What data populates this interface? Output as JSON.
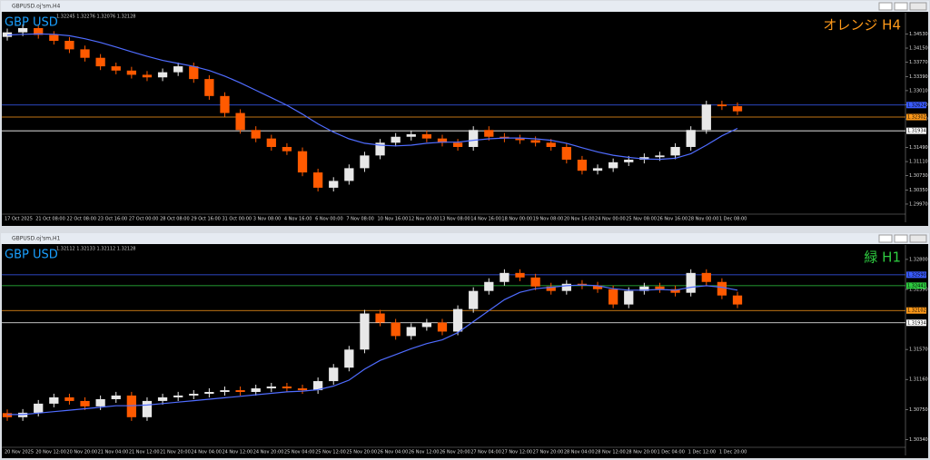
{
  "chart_data": [
    {
      "type": "candlestick",
      "title": "GBPUSD.oj'sm,H4",
      "info": "1.32245 1.32276 1.32076 1.32128",
      "symbol": "GBP USD",
      "label": "オレンジ H4",
      "label_color": "#ff9a1a",
      "categories": [
        "17 Oct 2025",
        null,
        "21 Oct 08:00",
        null,
        "22 Oct 08:00",
        null,
        "23 Oct 16:00",
        null,
        "27 Oct 00:00",
        null,
        "28 Oct 08:00",
        null,
        "29 Oct 16:00",
        null,
        "31 Oct 00:00",
        null,
        "3 Nov 08:00",
        null,
        "4 Nov 16:00",
        null,
        "6 Nov 00:00",
        null,
        "7 Nov 08:00",
        null,
        "10 Nov 16:00",
        null,
        "12 Nov 00:00",
        null,
        "13 Nov 08:00",
        null,
        "14 Nov 16:00",
        null,
        "18 Nov 00:00",
        null,
        "19 Nov 08:00",
        null,
        "20 Nov 16:00",
        null,
        "24 Nov 00:00",
        null,
        "25 Nov 08:00",
        null,
        "26 Nov 16:00",
        null,
        "28 Nov 00:00",
        null,
        "1 Dec 08:00",
        null
      ],
      "open": [
        1.3445,
        1.34572,
        1.34686,
        1.34504,
        1.34345,
        1.34117,
        1.3389,
        1.33662,
        1.33548,
        1.33435,
        1.33366,
        1.33503,
        1.33662,
        1.33321,
        1.32866,
        1.32411,
        1.31956,
        1.31728,
        1.31501,
        1.31387,
        1.30818,
        1.30409,
        1.30591,
        1.30932,
        1.31273,
        1.31615,
        1.31774,
        1.31842,
        1.31728,
        1.31615,
        1.31501,
        1.31956,
        1.31774,
        1.31728,
        1.31683,
        1.31615,
        1.31501,
        1.3116,
        1.30864,
        1.30932,
        1.31091,
        1.3116,
        1.31228,
        1.31273,
        1.31501,
        1.31956,
        1.32639,
        1.32593
      ],
      "high": [
        1.34672,
        1.34786,
        1.34786,
        1.34604,
        1.34445,
        1.34217,
        1.3399,
        1.33762,
        1.33648,
        1.33535,
        1.33603,
        1.33762,
        1.33762,
        1.33421,
        1.32966,
        1.32511,
        1.32056,
        1.31828,
        1.31601,
        1.31487,
        1.30918,
        1.30691,
        1.31032,
        1.31373,
        1.31715,
        1.31874,
        1.31942,
        1.31942,
        1.31828,
        1.31715,
        1.32056,
        1.32056,
        1.31874,
        1.31828,
        1.31783,
        1.31715,
        1.31601,
        1.3126,
        1.31032,
        1.31191,
        1.3126,
        1.31328,
        1.31373,
        1.31601,
        1.32056,
        1.32739,
        1.32739,
        1.32693
      ],
      "low": [
        1.3435,
        1.34472,
        1.34404,
        1.34245,
        1.34017,
        1.3379,
        1.33562,
        1.33448,
        1.33335,
        1.33266,
        1.33266,
        1.33403,
        1.33221,
        1.32766,
        1.32311,
        1.31856,
        1.31628,
        1.31401,
        1.31287,
        1.30718,
        1.30309,
        1.30309,
        1.30491,
        1.30832,
        1.31173,
        1.31515,
        1.31674,
        1.31628,
        1.31515,
        1.31401,
        1.31401,
        1.31674,
        1.31628,
        1.31583,
        1.31515,
        1.31401,
        1.3106,
        1.30764,
        1.30764,
        1.30832,
        1.30991,
        1.3106,
        1.31128,
        1.31173,
        1.31401,
        1.31856,
        1.32493,
        1.32356
      ],
      "close": [
        1.34572,
        1.34686,
        1.34504,
        1.34345,
        1.34117,
        1.3389,
        1.33662,
        1.33548,
        1.33435,
        1.33366,
        1.33503,
        1.33662,
        1.33321,
        1.32866,
        1.32411,
        1.31956,
        1.31728,
        1.31501,
        1.31387,
        1.30818,
        1.30409,
        1.30591,
        1.30932,
        1.31273,
        1.31615,
        1.31774,
        1.31842,
        1.31728,
        1.31615,
        1.31501,
        1.31956,
        1.31774,
        1.31728,
        1.31683,
        1.31615,
        1.31501,
        1.3116,
        1.30864,
        1.30932,
        1.31091,
        1.3116,
        1.31228,
        1.31273,
        1.31501,
        1.31956,
        1.32639,
        1.32593,
        1.32456
      ],
      "up_color": "#e8e8e8",
      "down_color": "#ff5a00",
      "ma": {
        "color": "#4f6cff",
        "values": [
          1.345,
          1.3452,
          1.3453,
          1.3452,
          1.3448,
          1.344,
          1.343,
          1.3418,
          1.3405,
          1.3393,
          1.3382,
          1.3374,
          1.3366,
          1.3355,
          1.334,
          1.3322,
          1.3302,
          1.3282,
          1.3262,
          1.3238,
          1.3212,
          1.319,
          1.3172,
          1.316,
          1.3155,
          1.3153,
          1.3155,
          1.316,
          1.3163,
          1.3163,
          1.3168,
          1.3172,
          1.3174,
          1.3174,
          1.3172,
          1.3168,
          1.316,
          1.3148,
          1.3137,
          1.3128,
          1.3122,
          1.3118,
          1.3117,
          1.312,
          1.3132,
          1.3155,
          1.318,
          1.32
        ]
      },
      "hlines": [
        {
          "value": 1.32624,
          "label": "1.32624",
          "color": "#3a5cff"
        },
        {
          "value": 1.32302,
          "label": "1.32302",
          "color": "#ff9a1a"
        },
        {
          "value": 1.31934,
          "label": "1.31934",
          "color": "#ffffff"
        }
      ],
      "ylim": [
        1.2975,
        1.3505
      ],
      "yticks": [
        {
          "value": 1.3453,
          "label": "1.34530"
        },
        {
          "value": 1.3415,
          "label": "1.34150"
        },
        {
          "value": 1.3377,
          "label": "1.33770"
        },
        {
          "value": 1.3339,
          "label": "1.33390"
        },
        {
          "value": 1.3301,
          "label": "1.33010"
        },
        {
          "value": 1.3263,
          "label": "1.32630"
        },
        {
          "value": 1.3225,
          "label": "1.32250"
        },
        {
          "value": 1.3149,
          "label": "1.31490"
        },
        {
          "value": 1.3111,
          "label": "1.31110"
        },
        {
          "value": 1.3073,
          "label": "1.30730"
        },
        {
          "value": 1.3035,
          "label": "1.30350"
        },
        {
          "value": 1.2997,
          "label": "1.29970"
        }
      ]
    },
    {
      "type": "candlestick",
      "title": "GBPUSD.oj'sm,H1",
      "info": "1.32112 1.32133 1.32112 1.32128",
      "symbol": "GBP USD",
      "label": "緑 H1",
      "label_color": "#2ecc40",
      "categories": [
        "20 Nov 2025",
        null,
        "20 Nov 12:00",
        null,
        "20 Nov 20:00",
        null,
        "21 Nov 04:00",
        null,
        "21 Nov 12:00",
        null,
        "21 Nov 20:00",
        null,
        "24 Nov 04:00",
        null,
        "24 Nov 12:00",
        null,
        "24 Nov 20:00",
        null,
        "25 Nov 04:00",
        null,
        "25 Nov 12:00",
        null,
        "25 Nov 20:00",
        null,
        "26 Nov 04:00",
        null,
        "26 Nov 12:00",
        null,
        "26 Nov 20:00",
        null,
        "27 Nov 04:00",
        null,
        "27 Nov 12:00",
        null,
        "27 Nov 20:00",
        null,
        "28 Nov 04:00",
        null,
        "28 Nov 12:00",
        null,
        "28 Nov 20:00",
        null,
        "1 Dec 04:00",
        null,
        "1 Dec 12:00",
        null,
        "1 Dec 20:00",
        null
      ],
      "open": [
        1.307,
        1.30644,
        1.30705,
        1.30829,
        1.30915,
        1.30866,
        1.30792,
        1.3089,
        1.3094,
        1.30644,
        1.30866,
        1.30915,
        1.3094,
        1.30964,
        1.30989,
        1.31013,
        1.30989,
        1.31038,
        1.31063,
        1.31038,
        1.31013,
        1.31137,
        1.31321,
        1.31568,
        1.32061,
        1.31937,
        1.31753,
        1.31876,
        1.31937,
        1.31814,
        1.32122,
        1.32369,
        1.32492,
        1.32615,
        1.32553,
        1.3243,
        1.32369,
        1.32467,
        1.32443,
        1.32393,
        1.32184,
        1.32369,
        1.3243,
        1.32393,
        1.32344,
        1.32615,
        1.32492,
        1.32307
      ],
      "high": [
        1.3075,
        1.30755,
        1.30879,
        1.30965,
        1.30965,
        1.30916,
        1.3094,
        1.3099,
        1.3099,
        1.30916,
        1.30965,
        1.3099,
        1.31014,
        1.31039,
        1.31063,
        1.31063,
        1.31088,
        1.31113,
        1.31113,
        1.31088,
        1.31187,
        1.31371,
        1.31618,
        1.32111,
        1.32111,
        1.31987,
        1.31926,
        1.31987,
        1.31987,
        1.32172,
        1.32419,
        1.32542,
        1.32665,
        1.32665,
        1.32603,
        1.3248,
        1.32517,
        1.32517,
        1.32493,
        1.32443,
        1.32419,
        1.3248,
        1.3248,
        1.32443,
        1.32665,
        1.32665,
        1.32542,
        1.32357
      ],
      "low": [
        1.30594,
        1.30594,
        1.30655,
        1.30779,
        1.30816,
        1.30742,
        1.30742,
        1.3084,
        1.30594,
        1.30594,
        1.30816,
        1.30865,
        1.3089,
        1.30914,
        1.30939,
        1.30939,
        1.30939,
        1.30988,
        1.30988,
        1.30963,
        1.30963,
        1.31087,
        1.31271,
        1.31518,
        1.31887,
        1.31703,
        1.31703,
        1.31826,
        1.31764,
        1.31764,
        1.32072,
        1.32319,
        1.32442,
        1.32503,
        1.3238,
        1.32319,
        1.32319,
        1.32393,
        1.32343,
        1.32134,
        1.32134,
        1.32319,
        1.32343,
        1.32294,
        1.32294,
        1.32442,
        1.32257,
        1.32134
      ],
      "close": [
        1.30644,
        1.30705,
        1.30829,
        1.30915,
        1.30866,
        1.30792,
        1.3089,
        1.3094,
        1.30644,
        1.30866,
        1.30915,
        1.3094,
        1.30964,
        1.30989,
        1.31013,
        1.30989,
        1.31038,
        1.31063,
        1.31038,
        1.31013,
        1.31137,
        1.31321,
        1.31568,
        1.32061,
        1.31937,
        1.31753,
        1.31876,
        1.31937,
        1.31814,
        1.32122,
        1.32369,
        1.32492,
        1.32615,
        1.32553,
        1.3243,
        1.32369,
        1.32467,
        1.32443,
        1.32393,
        1.32184,
        1.32369,
        1.3243,
        1.32393,
        1.32344,
        1.32615,
        1.32492,
        1.32307,
        1.32184
      ],
      "up_color": "#e8e8e8",
      "down_color": "#ff5a00",
      "ma": {
        "color": "#4f6cff",
        "values": [
          1.3068,
          1.3068,
          1.307,
          1.3072,
          1.3074,
          1.3076,
          1.3078,
          1.308,
          1.308,
          1.3081,
          1.3083,
          1.3085,
          1.3087,
          1.3089,
          1.3091,
          1.3093,
          1.3095,
          1.3097,
          1.3099,
          1.31,
          1.3102,
          1.3107,
          1.3115,
          1.313,
          1.3142,
          1.315,
          1.3158,
          1.3165,
          1.317,
          1.318,
          1.3195,
          1.321,
          1.3225,
          1.3235,
          1.324,
          1.3242,
          1.3244,
          1.3245,
          1.3244,
          1.324,
          1.3238,
          1.3238,
          1.3239,
          1.3238,
          1.3242,
          1.3244,
          1.3242,
          1.3238
        ]
      },
      "hlines": [
        {
          "value": 1.3259,
          "label": "1.32590",
          "color": "#3a5cff"
        },
        {
          "value": 1.32441,
          "label": "1.32441",
          "color": "#2ecc40"
        },
        {
          "value": 1.32102,
          "label": "1.32102",
          "color": "#ff9a1a"
        },
        {
          "value": 1.31934,
          "label": "1.31934",
          "color": "#ffffff"
        }
      ],
      "ylim": [
        1.3027,
        1.3296
      ],
      "yticks": [
        {
          "value": 1.328,
          "label": "1.32800"
        },
        {
          "value": 1.3239,
          "label": "1.32390"
        },
        {
          "value": 1.3157,
          "label": "1.31570"
        },
        {
          "value": 1.3116,
          "label": "1.31160"
        },
        {
          "value": 1.3075,
          "label": "1.30750"
        },
        {
          "value": 1.3034,
          "label": "1.30340"
        }
      ]
    }
  ]
}
